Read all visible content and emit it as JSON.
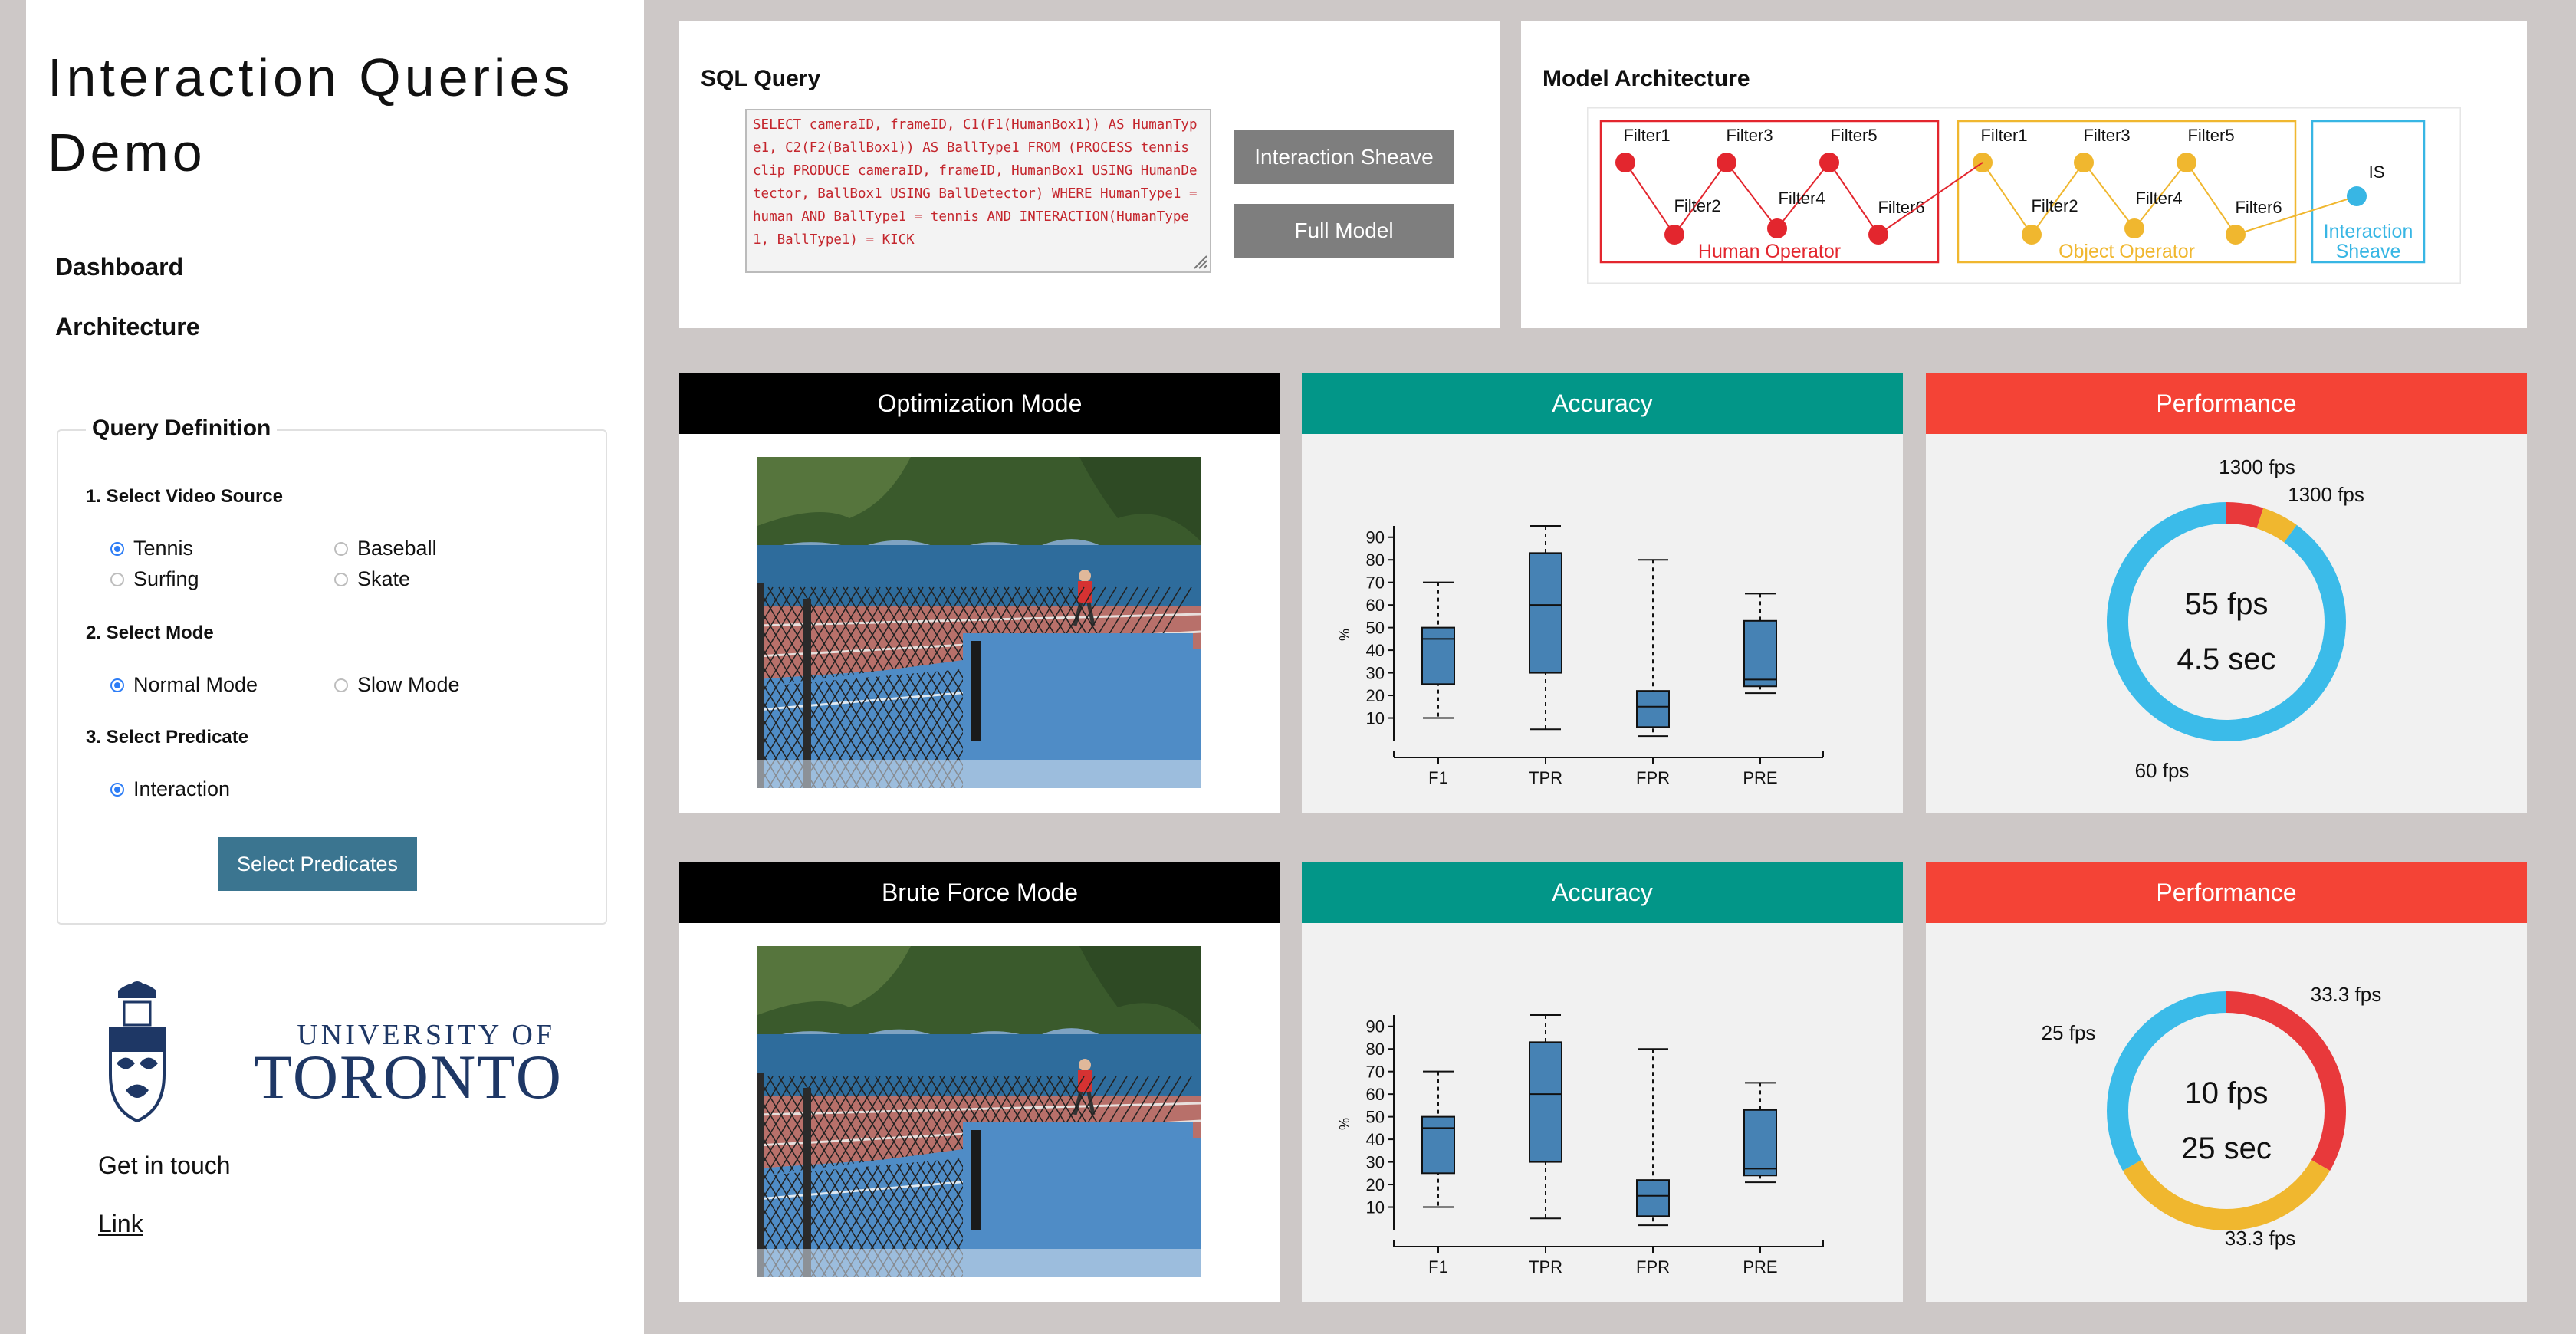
{
  "sidebar": {
    "title": "Interaction Queries Demo",
    "nav": [
      "Dashboard",
      "Architecture"
    ],
    "query_definition": {
      "legend": "Query Definition",
      "step1": "1. Select Video Source",
      "sources": [
        "Tennis",
        "Baseball",
        "Surfing",
        "Skate"
      ],
      "selected_source": "Tennis",
      "step2": "2. Select Mode",
      "modes": [
        "Normal Mode",
        "Slow Mode"
      ],
      "selected_mode": "Normal Mode",
      "step3": "3. Select Predicate",
      "predicates": [
        "Interaction"
      ],
      "button": "Select Predicates"
    },
    "logo": {
      "line1": "UNIVERSITY OF",
      "line2": "TORONTO"
    },
    "contact": "Get in touch",
    "link": "Link"
  },
  "sql": {
    "title": "SQL Query",
    "query": "SELECT cameraID, frameID, C1(F1(HumanBox1)) AS HumanType1, C2(F2(BallBox1)) AS BallType1 FROM (PROCESS tennis clip PRODUCE cameraID, frameID, HumanBox1 USING HumanDetector, BallBox1 USING BallDetector) WHERE HumanType1 = human AND BallType1 = tennis AND INTERACTION(HumanType1, BallType1) = KICK",
    "buttons": [
      "Interaction Sheave",
      "Full Model"
    ]
  },
  "architecture": {
    "title": "Model Architecture",
    "human_filters": [
      "Filter1",
      "Filter2",
      "Filter3",
      "Filter4",
      "Filter5",
      "Filter6"
    ],
    "human_label": "Human Operator",
    "object_filters": [
      "Filter1",
      "Filter2",
      "Filter3",
      "Filter4",
      "Filter5",
      "Filter6"
    ],
    "object_label": "Object Operator",
    "sheave_node": "IS",
    "sheave_label_1": "Interaction",
    "sheave_label_2": "Sheave",
    "colors": {
      "human": "#e3262e",
      "object": "#f0b72f",
      "sheave": "#38b6e4"
    }
  },
  "rows": [
    {
      "mode_title": "Optimization Mode",
      "accuracy_title": "Accuracy",
      "performance_title": "Performance",
      "performance": {
        "center_line1": "55 fps",
        "center_line2": "4.5 sec",
        "slices": [
          {
            "label": "1300 fps",
            "fraction": 0.05,
            "color": "#e8393b"
          },
          {
            "label": "1300 fps",
            "fraction": 0.05,
            "color": "#f0b72f"
          },
          {
            "label": "60 fps",
            "fraction": 0.9,
            "color": "#3bbbe9"
          }
        ]
      }
    },
    {
      "mode_title": "Brute Force Mode",
      "accuracy_title": "Accuracy",
      "performance_title": "Performance",
      "performance": {
        "center_line1": "10 fps",
        "center_line2": "25 sec",
        "slices": [
          {
            "label": "33.3 fps",
            "fraction": 0.3333,
            "color": "#e8393b"
          },
          {
            "label": "33.3 fps",
            "fraction": 0.3333,
            "color": "#f0b72f"
          },
          {
            "label": "25 fps",
            "fraction": 0.3334,
            "color": "#3bbbe9"
          }
        ]
      }
    }
  ],
  "chart_data": [
    {
      "type": "boxplot",
      "ylabel": "%",
      "yticks": [
        10,
        20,
        30,
        40,
        50,
        60,
        70,
        80,
        90
      ],
      "ylim": [
        0,
        95
      ],
      "categories": [
        "F1",
        "TPR",
        "FPR",
        "PRE"
      ],
      "boxes": [
        {
          "min": 10,
          "q1": 25,
          "median": 45,
          "q3": 50,
          "max": 70
        },
        {
          "min": 5,
          "q1": 30,
          "median": 60,
          "q3": 83,
          "max": 95
        },
        {
          "min": 2,
          "q1": 6,
          "median": 15,
          "q3": 22,
          "max": 80
        },
        {
          "min": 21,
          "q1": 24,
          "median": 27,
          "q3": 53,
          "max": 65
        }
      ],
      "color": "#4682b4"
    },
    {
      "type": "boxplot",
      "ylabel": "%",
      "yticks": [
        10,
        20,
        30,
        40,
        50,
        60,
        70,
        80,
        90
      ],
      "ylim": [
        0,
        95
      ],
      "categories": [
        "F1",
        "TPR",
        "FPR",
        "PRE"
      ],
      "boxes": [
        {
          "min": 10,
          "q1": 25,
          "median": 45,
          "q3": 50,
          "max": 70
        },
        {
          "min": 5,
          "q1": 30,
          "median": 60,
          "q3": 83,
          "max": 95
        },
        {
          "min": 2,
          "q1": 6,
          "median": 15,
          "q3": 22,
          "max": 80
        },
        {
          "min": 21,
          "q1": 24,
          "median": 27,
          "q3": 53,
          "max": 65
        }
      ],
      "color": "#4682b4"
    }
  ],
  "colors": {
    "mode_header": "#000000",
    "accuracy_header": "#029688",
    "performance_header": "#f44336",
    "sidebar_button": "#3b7590",
    "gray_button": "#7e7e7e"
  }
}
